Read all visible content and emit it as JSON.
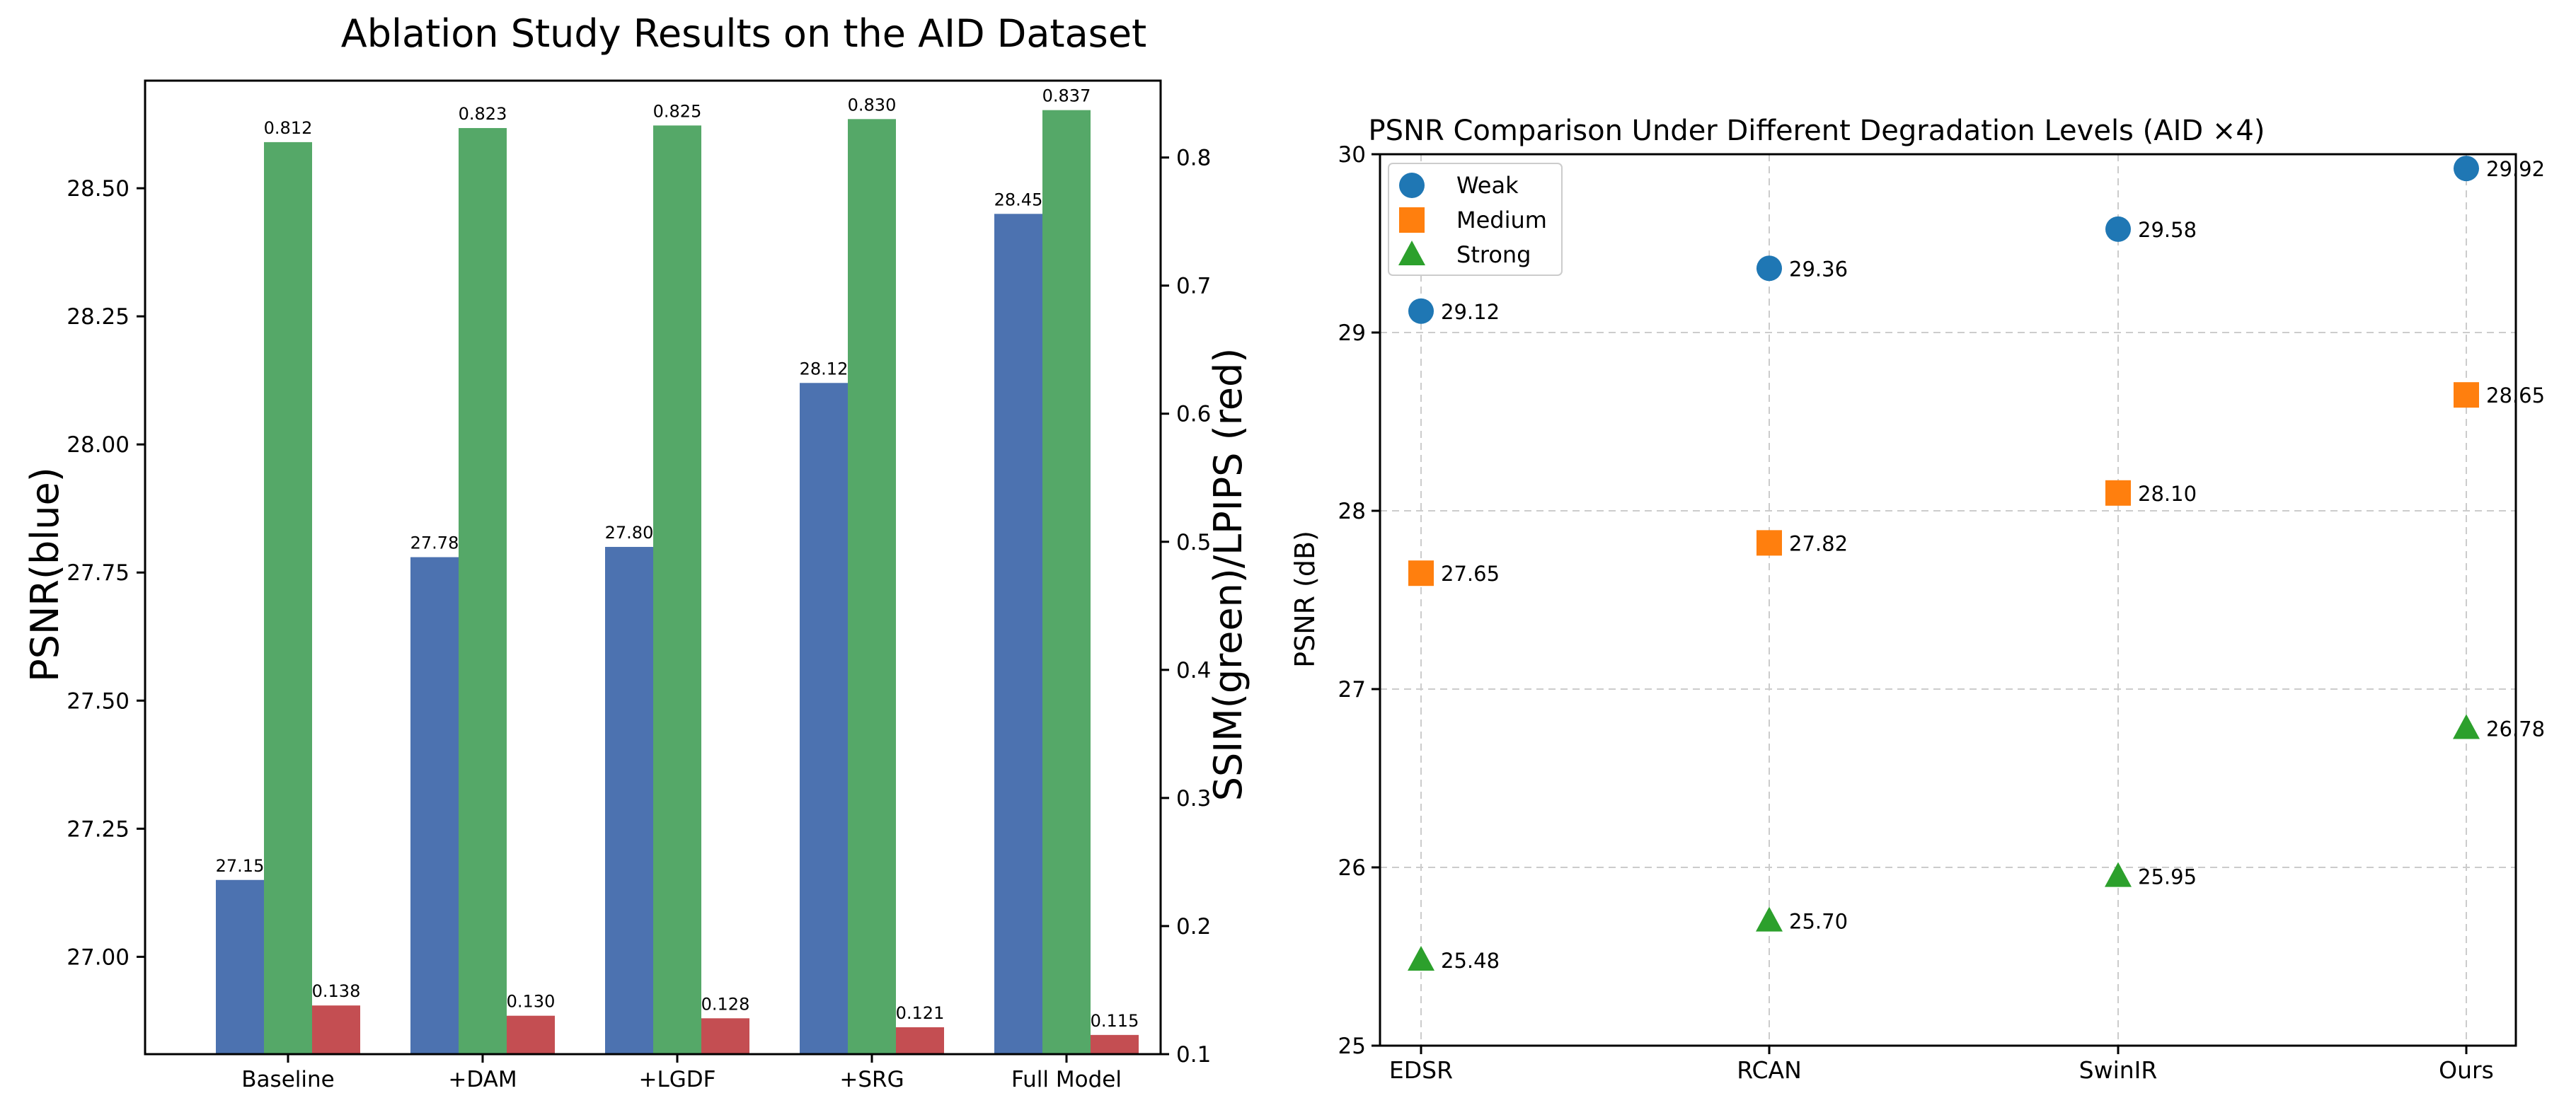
{
  "chart_data": [
    {
      "type": "bar",
      "title": "Ablation Study Results on the AID Dataset",
      "categories": [
        "Baseline",
        "+DAM",
        "+LGDF",
        "+SRG",
        "Full Model"
      ],
      "ylabel": "PSNR(blue)",
      "y2label": "SSIM(green)/LPIPS (red)",
      "ylim": [
        26.81,
        28.71
      ],
      "y2lim": [
        0.1,
        0.86
      ],
      "yticks": [
        "27.00",
        "27.25",
        "27.50",
        "27.75",
        "28.00",
        "28.25",
        "28.50"
      ],
      "y2ticks": [
        "0.1",
        "0.2",
        "0.3",
        "0.4",
        "0.5",
        "0.6",
        "0.7",
        "0.8"
      ],
      "grid": false,
      "series": [
        {
          "key": "psnr",
          "axis": "left",
          "color": "#4c72b0",
          "values": [
            27.15,
            27.78,
            27.8,
            28.12,
            28.45
          ],
          "labels": [
            "27.15",
            "27.78",
            "27.80",
            "28.12",
            "28.45"
          ]
        },
        {
          "key": "ssim",
          "axis": "right",
          "color": "#55a868",
          "values": [
            0.812,
            0.823,
            0.825,
            0.83,
            0.837
          ],
          "labels": [
            "0.812",
            "0.823",
            "0.825",
            "0.830",
            "0.837"
          ]
        },
        {
          "key": "lpips",
          "axis": "right",
          "color": "#c44e52",
          "values": [
            0.138,
            0.13,
            0.128,
            0.121,
            0.115
          ],
          "labels": [
            "0.138",
            "0.130",
            "0.128",
            "0.121",
            "0.115"
          ]
        }
      ]
    },
    {
      "type": "scatter",
      "title": "PSNR Comparison Under Different Degradation Levels (AID ×4)",
      "categories": [
        "EDSR",
        "RCAN",
        "SwinIR",
        "Ours"
      ],
      "ylabel": "PSNR (dB)",
      "ylim": [
        25,
        30
      ],
      "yticks": [
        "25",
        "26",
        "27",
        "28",
        "29",
        "30"
      ],
      "grid": true,
      "legend": "top-left",
      "series": [
        {
          "name": "Weak",
          "marker": "circle",
          "color": "#1f77b4",
          "values": [
            29.12,
            29.36,
            29.58,
            29.92
          ],
          "labels": [
            "29.12",
            "29.36",
            "29.58",
            "29.92"
          ]
        },
        {
          "name": "Medium",
          "marker": "square",
          "color": "#ff7f0e",
          "values": [
            27.65,
            27.82,
            28.1,
            28.65
          ],
          "labels": [
            "27.65",
            "27.82",
            "28.10",
            "28.65"
          ]
        },
        {
          "name": "Strong",
          "marker": "triangle",
          "color": "#2ca02c",
          "values": [
            25.48,
            25.7,
            25.95,
            26.78
          ],
          "labels": [
            "25.48",
            "25.70",
            "25.95",
            "26.78"
          ]
        }
      ]
    }
  ]
}
